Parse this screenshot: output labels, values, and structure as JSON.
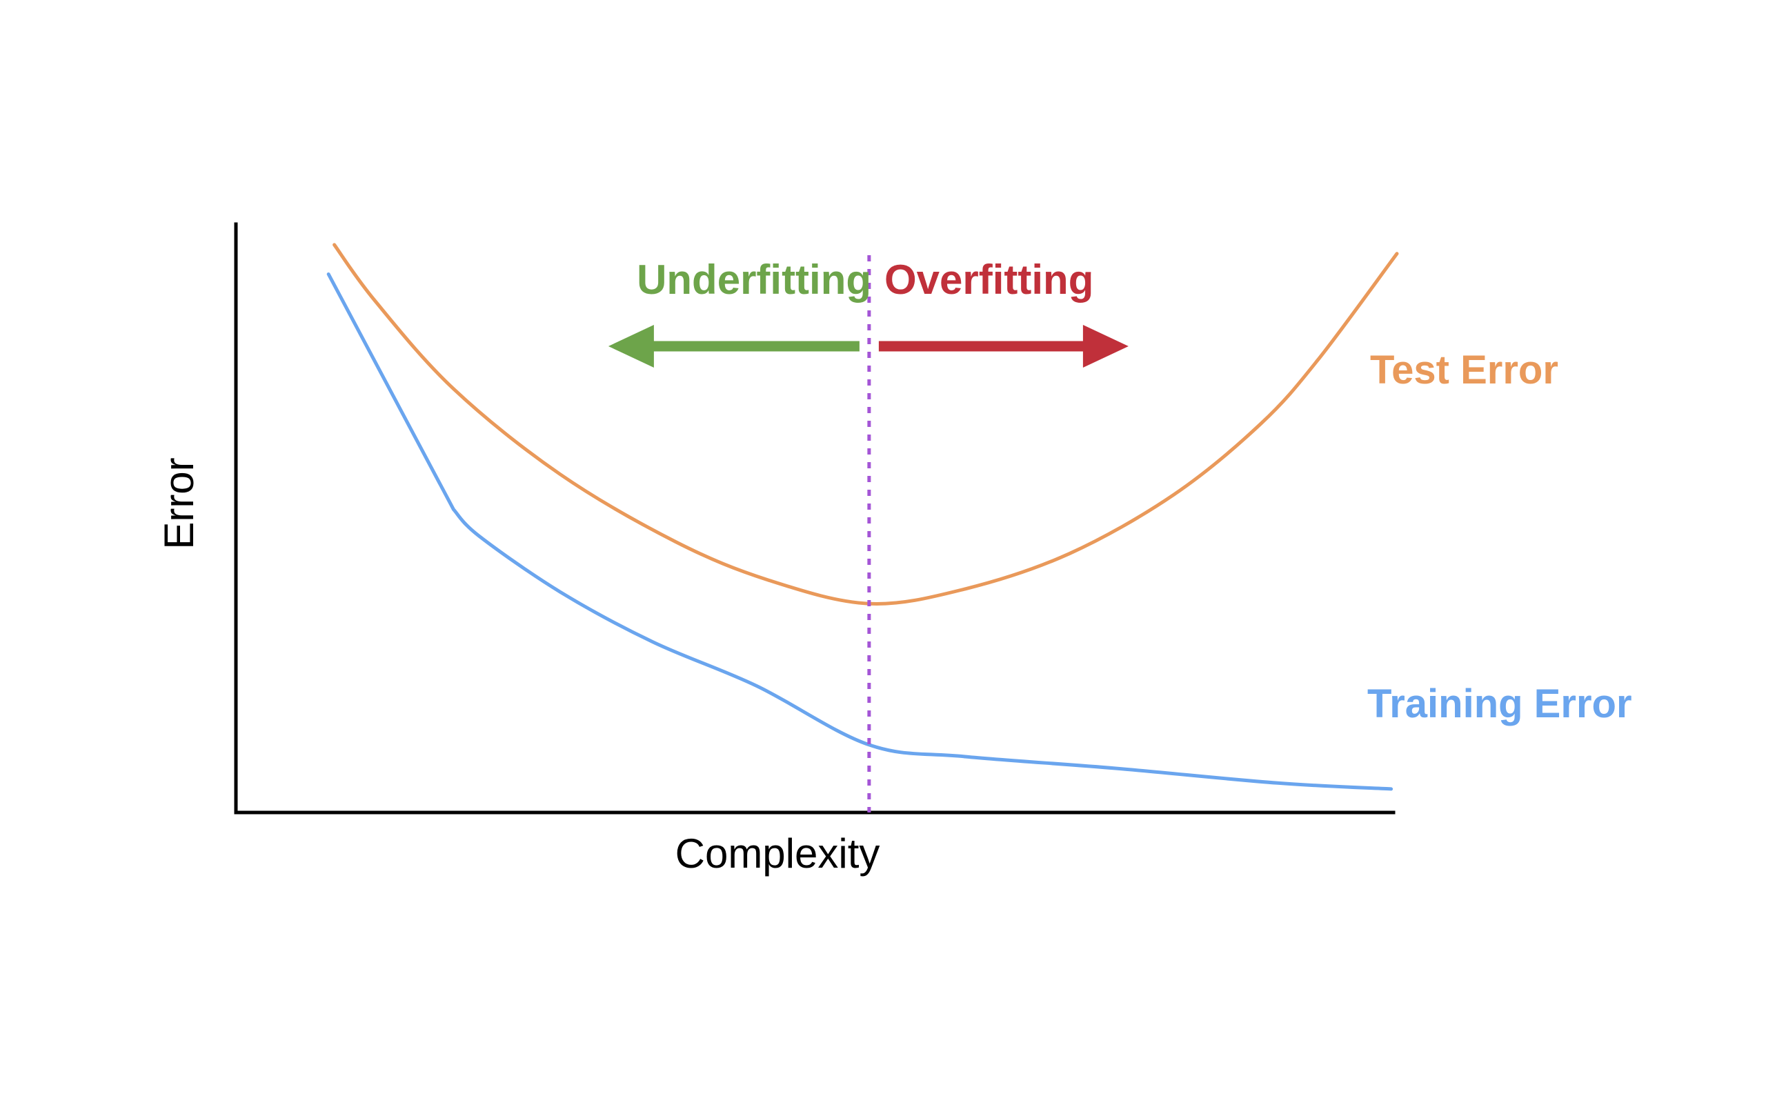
{
  "chart_data": {
    "type": "line",
    "title": "",
    "xlabel": "Complexity",
    "ylabel": "Error",
    "grid": false,
    "x_range": [
      0,
      100
    ],
    "y_range": [
      0,
      100
    ],
    "series": [
      {
        "name": "Test Error",
        "color": "#E9995A",
        "x": [
          8.5,
          12.0,
          18.8,
          28.0,
          38.0,
          46.0,
          54.7,
          63.0,
          72.0,
          81.0,
          88.5,
          93.5,
          100.3
        ],
        "y": [
          96.5,
          87.0,
          72.0,
          57.5,
          46.0,
          39.5,
          35.5,
          38.0,
          44.0,
          54.0,
          66.0,
          77.0,
          95.0
        ]
      },
      {
        "name": "Training Error",
        "color": "#6AA5EE",
        "x": [
          8.0,
          18.8,
          21.0,
          28.0,
          36.0,
          45.0,
          54.7,
          63.0,
          76.0,
          90.0,
          99.8
        ],
        "y": [
          91.5,
          51.5,
          47.0,
          37.5,
          29.0,
          21.5,
          11.5,
          9.5,
          7.5,
          5.0,
          4.0
        ]
      }
    ],
    "optimum_marker": {
      "x": 54.7,
      "color": "#A455D6",
      "style": "dotted"
    },
    "regions": [
      {
        "label": "Underfitting",
        "direction": "left",
        "color": "#6DA44A"
      },
      {
        "label": "Overfitting",
        "direction": "right",
        "color": "#C0303A"
      }
    ],
    "axis_color": "#000000"
  }
}
